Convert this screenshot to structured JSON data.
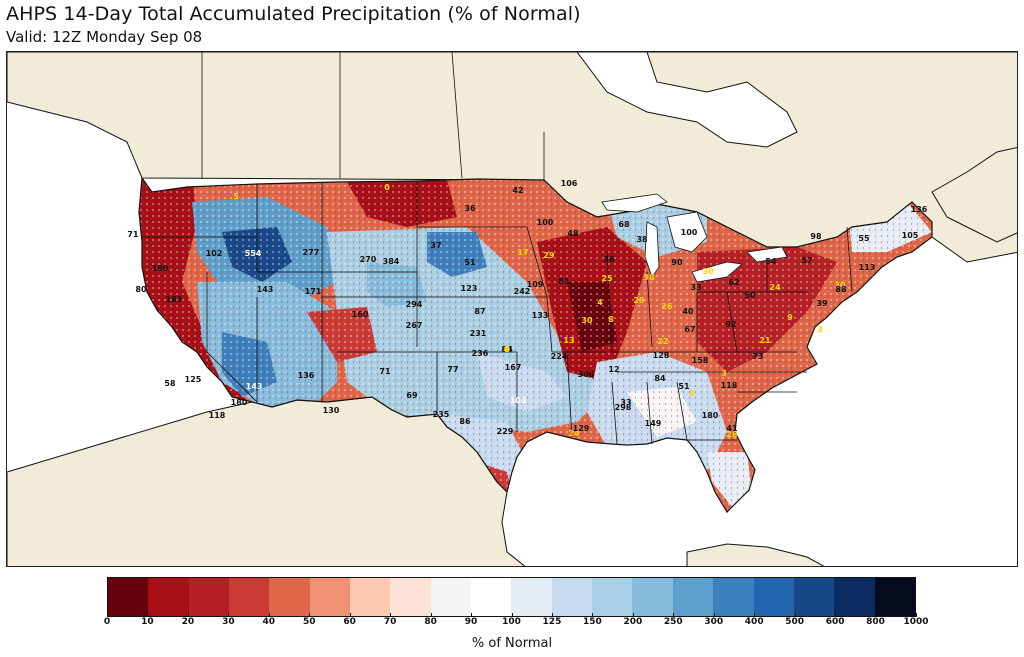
{
  "title": "AHPS 14-Day Total Accumulated Precipitation (% of Normal)",
  "subtitle": "Valid: 12Z Monday Sep 08",
  "colorbar": {
    "label": "% of Normal",
    "ticks": [
      "0",
      "10",
      "20",
      "30",
      "40",
      "50",
      "60",
      "70",
      "80",
      "90",
      "100",
      "125",
      "150",
      "200",
      "250",
      "300",
      "400",
      "500",
      "600",
      "800",
      "1000"
    ],
    "colors": [
      "#67000d",
      "#a50f15",
      "#b52025",
      "#cb3b36",
      "#de6649",
      "#ef9273",
      "#fcc9b0",
      "#fde2d6",
      "#f5f5f5",
      "#ffffff",
      "#e4ecf5",
      "#c6dbef",
      "#a9cfe5",
      "#86bcdb",
      "#5c9fcb",
      "#3b80bd",
      "#2366ae",
      "#16488a",
      "#0a2c60",
      "#050d1c"
    ]
  },
  "map_labels": [
    {
      "text": "0",
      "color": "yellow"
    },
    {
      "text": "5",
      "color": "yellow"
    },
    {
      "text": "42",
      "color": "black"
    },
    {
      "text": "106",
      "color": "black"
    },
    {
      "text": "36",
      "color": "black"
    },
    {
      "text": "100",
      "color": "black"
    },
    {
      "text": "48",
      "color": "black"
    },
    {
      "text": "68",
      "color": "black"
    },
    {
      "text": "38",
      "color": "black"
    },
    {
      "text": "100",
      "color": "black"
    },
    {
      "text": "136",
      "color": "black"
    },
    {
      "text": "98",
      "color": "black"
    },
    {
      "text": "55",
      "color": "black"
    },
    {
      "text": "105",
      "color": "black"
    },
    {
      "text": "57",
      "color": "black"
    },
    {
      "text": "54",
      "color": "black"
    },
    {
      "text": "113",
      "color": "black"
    },
    {
      "text": "71",
      "color": "black"
    },
    {
      "text": "102",
      "color": "black"
    },
    {
      "text": "554",
      "color": "white"
    },
    {
      "text": "277",
      "color": "black"
    },
    {
      "text": "270",
      "color": "black"
    },
    {
      "text": "384",
      "color": "black"
    },
    {
      "text": "37",
      "color": "black"
    },
    {
      "text": "51",
      "color": "black"
    },
    {
      "text": "17",
      "color": "yellow"
    },
    {
      "text": "29",
      "color": "yellow"
    },
    {
      "text": "36",
      "color": "black"
    },
    {
      "text": "90",
      "color": "black"
    },
    {
      "text": "30",
      "color": "yellow"
    },
    {
      "text": "180",
      "color": "black"
    },
    {
      "text": "143",
      "color": "black"
    },
    {
      "text": "171",
      "color": "black"
    },
    {
      "text": "123",
      "color": "black"
    },
    {
      "text": "242",
      "color": "black"
    },
    {
      "text": "109",
      "color": "black"
    },
    {
      "text": "81",
      "color": "black"
    },
    {
      "text": "25",
      "color": "yellow"
    },
    {
      "text": "38",
      "color": "yellow"
    },
    {
      "text": "33",
      "color": "black"
    },
    {
      "text": "62",
      "color": "black"
    },
    {
      "text": "24",
      "color": "yellow"
    },
    {
      "text": "30",
      "color": "yellow"
    },
    {
      "text": "88",
      "color": "black"
    },
    {
      "text": "183",
      "color": "black"
    },
    {
      "text": "294",
      "color": "black"
    },
    {
      "text": "87",
      "color": "black"
    },
    {
      "text": "4",
      "color": "yellow"
    },
    {
      "text": "29",
      "color": "yellow"
    },
    {
      "text": "26",
      "color": "yellow"
    },
    {
      "text": "50",
      "color": "black"
    },
    {
      "text": "39",
      "color": "black"
    },
    {
      "text": "160",
      "color": "black"
    },
    {
      "text": "267",
      "color": "black"
    },
    {
      "text": "231",
      "color": "black"
    },
    {
      "text": "133",
      "color": "black"
    },
    {
      "text": "30",
      "color": "yellow"
    },
    {
      "text": "8",
      "color": "yellow"
    },
    {
      "text": "40",
      "color": "black"
    },
    {
      "text": "92",
      "color": "black"
    },
    {
      "text": "9",
      "color": "yellow"
    },
    {
      "text": "3",
      "color": "yellow"
    },
    {
      "text": "13",
      "color": "yellow"
    },
    {
      "text": "22",
      "color": "yellow"
    },
    {
      "text": "67",
      "color": "black"
    },
    {
      "text": "21",
      "color": "yellow"
    },
    {
      "text": "236",
      "color": "black"
    },
    {
      "text": "224",
      "color": "black"
    },
    {
      "text": "128",
      "color": "black"
    },
    {
      "text": "158",
      "color": "black"
    },
    {
      "text": "73",
      "color": "black"
    },
    {
      "text": "136",
      "color": "black"
    },
    {
      "text": "71",
      "color": "black"
    },
    {
      "text": "77",
      "color": "black"
    },
    {
      "text": "167",
      "color": "black"
    },
    {
      "text": "306",
      "color": "black"
    },
    {
      "text": "12",
      "color": "black"
    },
    {
      "text": "84",
      "color": "black"
    },
    {
      "text": "51",
      "color": "black"
    },
    {
      "text": "3",
      "color": "yellow"
    },
    {
      "text": "143",
      "color": "white"
    },
    {
      "text": "69",
      "color": "black"
    },
    {
      "text": "103",
      "color": "white"
    },
    {
      "text": "33",
      "color": "black"
    },
    {
      "text": "5",
      "color": "yellow"
    },
    {
      "text": "118",
      "color": "black"
    },
    {
      "text": "298",
      "color": "black"
    },
    {
      "text": "180",
      "color": "black"
    },
    {
      "text": "130",
      "color": "black"
    },
    {
      "text": "235",
      "color": "black"
    },
    {
      "text": "86",
      "color": "black"
    },
    {
      "text": "149",
      "color": "black"
    },
    {
      "text": "180",
      "color": "black"
    },
    {
      "text": "24",
      "color": "yellow"
    },
    {
      "text": "129",
      "color": "black"
    },
    {
      "text": "41",
      "color": "black"
    },
    {
      "text": "125",
      "color": "black"
    },
    {
      "text": "118",
      "color": "black"
    },
    {
      "text": "80",
      "color": "black"
    },
    {
      "text": "58",
      "color": "black"
    },
    {
      "text": "28",
      "color": "yellow"
    },
    {
      "text": "229",
      "color": "black"
    },
    {
      "text": "24",
      "color": "yellow"
    },
    {
      "text": "84",
      "color": "black"
    },
    {
      "text": "86",
      "color": "black"
    },
    {
      "text": "0",
      "color": "yellow"
    },
    {
      "text": "0",
      "color": "yellow"
    },
    {
      "text": "6",
      "color": "yellow"
    },
    {
      "text": "8",
      "color": "yellow"
    },
    {
      "text": "0",
      "color": "yellow"
    },
    {
      "text": "0",
      "color": "yellow"
    },
    {
      "text": "5",
      "color": "yellow"
    }
  ]
}
